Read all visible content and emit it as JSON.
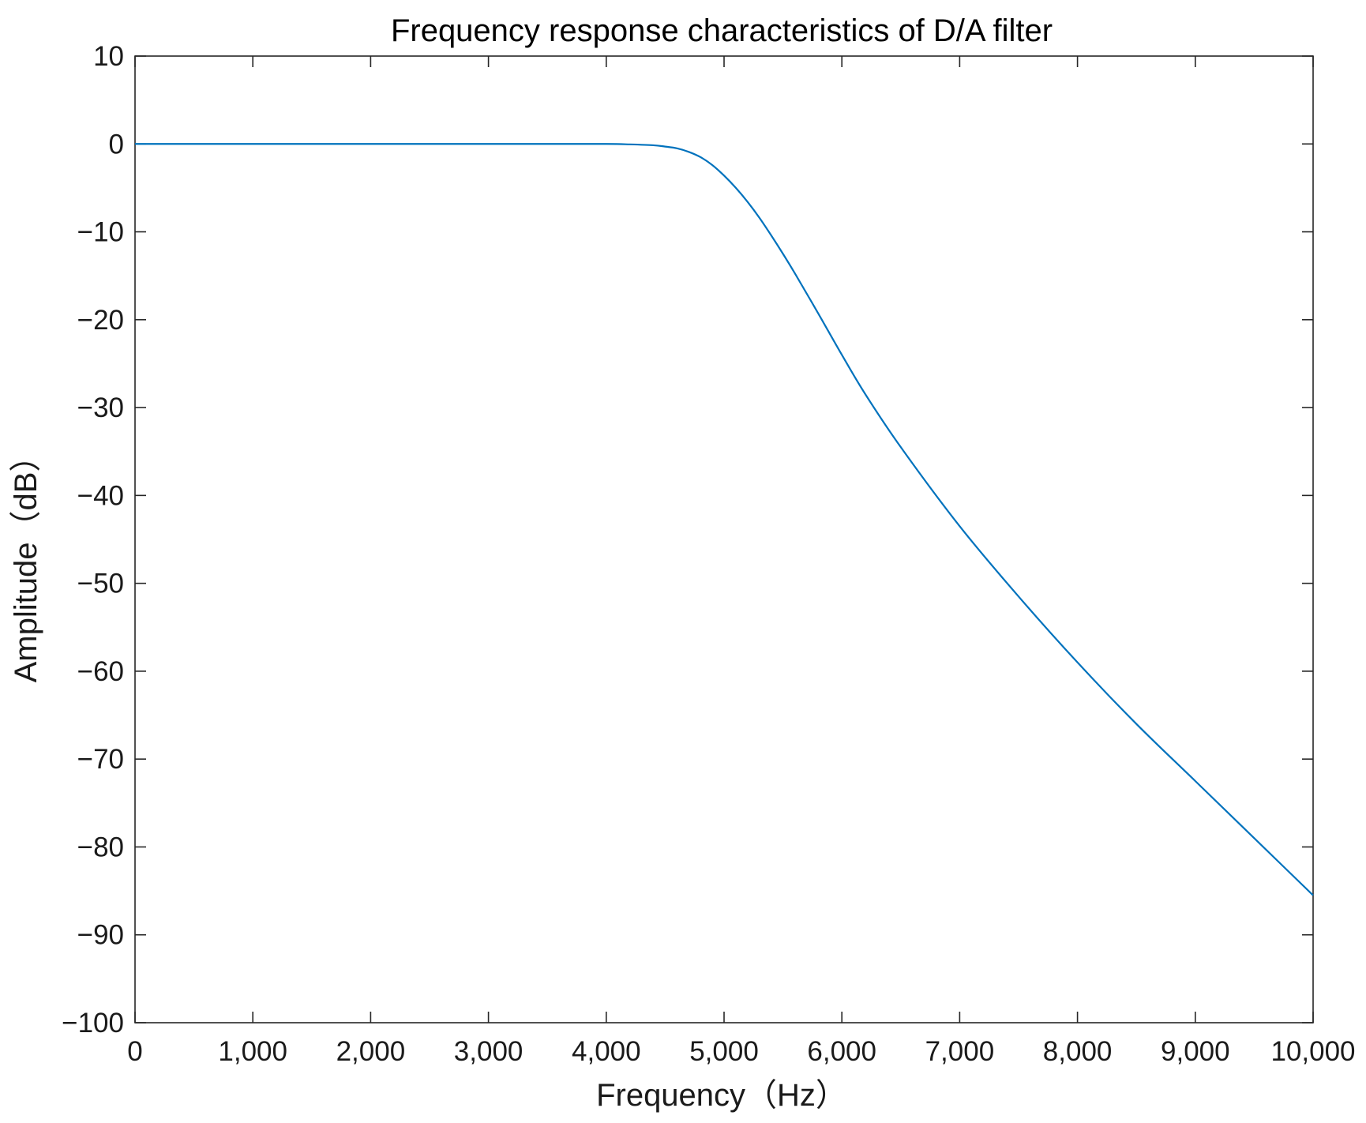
{
  "chart_data": {
    "type": "line",
    "title": "Frequency response characteristics of D/A filter",
    "xlabel": "Frequency（Hz）",
    "ylabel": "Amplitude（dB）",
    "xlim": [
      0,
      10000
    ],
    "ylim": [
      -100,
      10
    ],
    "xticks": [
      0,
      1000,
      2000,
      3000,
      4000,
      5000,
      6000,
      7000,
      8000,
      9000,
      10000
    ],
    "xtick_labels": [
      "0",
      "1,000",
      "2,000",
      "3,000",
      "4,000",
      "5,000",
      "6,000",
      "7,000",
      "8,000",
      "9,000",
      "10,000"
    ],
    "yticks": [
      10,
      0,
      -10,
      -20,
      -30,
      -40,
      -50,
      -60,
      -70,
      -80,
      -90,
      -100
    ],
    "ytick_labels": [
      "10",
      "0",
      "−10",
      "−20",
      "−30",
      "−40",
      "−50",
      "−60",
      "−70",
      "−80",
      "−90",
      "−100"
    ],
    "grid": false,
    "series": [
      {
        "color": "#0072bd",
        "x": [
          0,
          1000,
          2000,
          3000,
          3500,
          4000,
          4200,
          4400,
          4500,
          4600,
          4700,
          4800,
          4900,
          5000,
          5100,
          5200,
          5300,
          5400,
          5500,
          5600,
          5800,
          6000,
          6200,
          6500,
          7000,
          7500,
          8000,
          8500,
          9000,
          9500,
          10000
        ],
        "y": [
          0,
          0,
          0,
          0,
          0,
          0,
          -0.05,
          -0.15,
          -0.3,
          -0.5,
          -0.9,
          -1.5,
          -2.4,
          -3.6,
          -5.0,
          -6.6,
          -8.4,
          -10.4,
          -12.5,
          -14.7,
          -19.3,
          -24.0,
          -28.5,
          -34.5,
          -43.5,
          -51.5,
          -59.0,
          -66.0,
          -72.5,
          -79.0,
          -85.5
        ]
      }
    ]
  }
}
